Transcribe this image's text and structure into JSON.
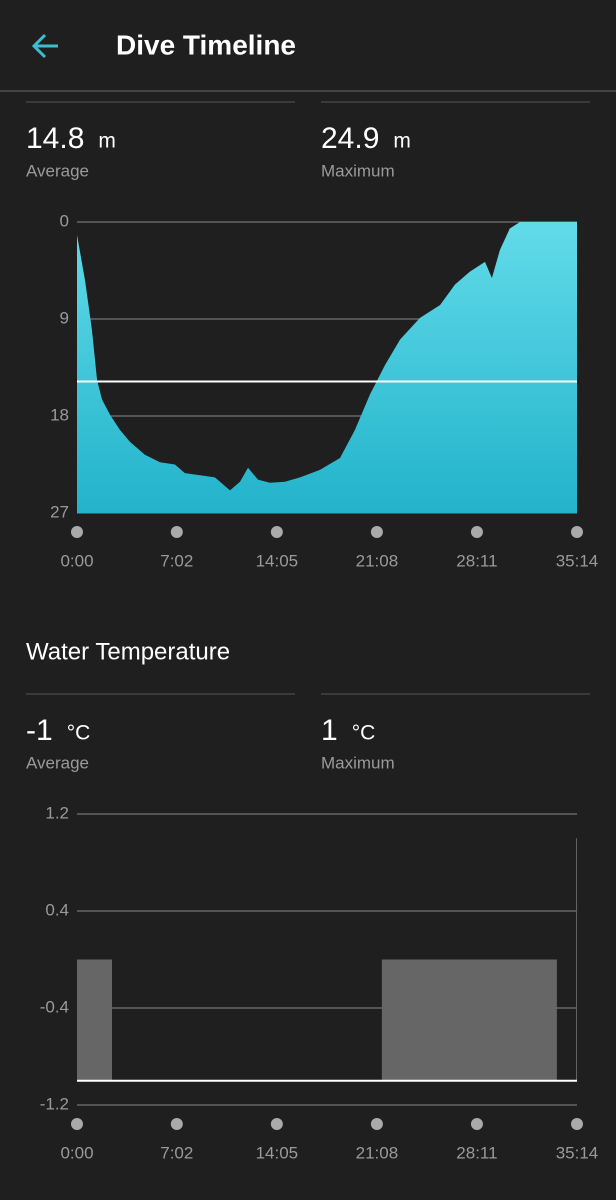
{
  "header": {
    "title": "Dive Timeline"
  },
  "chart_data": [
    {
      "type": "area",
      "stats": [
        {
          "value": 14.8,
          "unit": "m",
          "label": "Average"
        },
        {
          "value": 24.9,
          "unit": "m",
          "label": "Maximum"
        }
      ],
      "x": [
        0,
        34,
        63,
        85,
        106,
        140,
        182,
        224,
        287,
        351,
        414,
        456,
        520,
        583,
        647,
        689,
        723,
        765,
        816,
        879,
        943,
        1027,
        1112,
        1175,
        1239,
        1302,
        1366,
        1450,
        1535,
        1598,
        1661,
        1725,
        1754,
        1788,
        1830,
        1873,
        2114
      ],
      "values": [
        1.2,
        5.4,
        10.0,
        14.7,
        16.5,
        17.9,
        19.3,
        20.4,
        21.6,
        22.3,
        22.5,
        23.3,
        23.5,
        23.7,
        24.9,
        24.1,
        22.8,
        23.9,
        24.2,
        24.1,
        23.7,
        23.0,
        21.9,
        19.3,
        16.0,
        13.3,
        10.9,
        8.9,
        7.7,
        5.8,
        4.6,
        3.7,
        5.2,
        2.6,
        0.6,
        0,
        0
      ],
      "colors": [
        "#62dbe9",
        "#22b3cb"
      ],
      "xlim": [
        0,
        2114
      ],
      "xticks": [
        {
          "value": 0,
          "label": "0:00"
        },
        {
          "value": 422,
          "label": "7:02"
        },
        {
          "value": 845,
          "label": "14:05"
        },
        {
          "value": 1268,
          "label": "21:08"
        },
        {
          "value": 1691,
          "label": "28:11"
        },
        {
          "value": 2114,
          "label": "35:14"
        }
      ],
      "ylim": [
        27,
        0
      ],
      "yticks": [
        0,
        9,
        18,
        27
      ],
      "grid": true
    },
    {
      "type": "step",
      "title": "Water Temperature",
      "stats": [
        {
          "value": -1,
          "unit": "°C",
          "label": "Average"
        },
        {
          "value": 1,
          "unit": "°C",
          "label": "Maximum"
        }
      ],
      "x": [
        0,
        148,
        1289,
        2029,
        2110
      ],
      "values": [
        0,
        -1,
        0,
        -1,
        1
      ],
      "color": "#666666",
      "xlim": [
        0,
        2114
      ],
      "xticks": [
        {
          "value": 0,
          "label": "0:00"
        },
        {
          "value": 422,
          "label": "7:02"
        },
        {
          "value": 845,
          "label": "14:05"
        },
        {
          "value": 1268,
          "label": "21:08"
        },
        {
          "value": 1691,
          "label": "28:11"
        },
        {
          "value": 2114,
          "label": "35:14"
        }
      ],
      "ylim": [
        -1.2,
        1.2
      ],
      "yticks": [
        1.2,
        0.4,
        -0.4,
        -1.2
      ],
      "grid": true
    }
  ]
}
